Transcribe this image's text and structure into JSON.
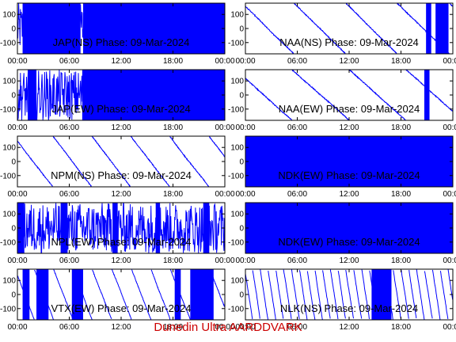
{
  "footer": "Dunedin Ultra AARDDVARK",
  "colors": {
    "trace": "#0000ff",
    "axis": "#000000",
    "footer": "#cc0000",
    "background": "#ffffff"
  },
  "chart_data": [
    {
      "type": "line",
      "title": "JAP(NS) Phase: 09-Mar-2024",
      "ylim": [
        -180,
        180
      ],
      "yticks": [
        -100,
        0,
        100
      ],
      "xlim": [
        0,
        24
      ],
      "xticks": [
        "00:00",
        "06:00",
        "12:00",
        "18:00",
        "00:00"
      ],
      "pattern": "noise",
      "blocks": [
        [
          0.6,
          7.3
        ],
        [
          7.6,
          24
        ]
      ]
    },
    {
      "type": "line",
      "title": "NAA(NS) Phase: 09-Mar-2024",
      "ylim": [
        -180,
        180
      ],
      "yticks": [
        -100,
        0,
        100
      ],
      "xlim": [
        0,
        24
      ],
      "xticks": [
        "00:00",
        "06:00",
        "12:00",
        "18:00",
        "00:00"
      ],
      "pattern": "wrapped",
      "rate": 60,
      "start": 160,
      "blocks": [
        [
          20.9,
          21.5
        ],
        [
          22.0,
          23.5
        ]
      ]
    },
    {
      "type": "line",
      "title": "JAP(EW) Phase: 09-Mar-2024",
      "ylim": [
        -180,
        180
      ],
      "yticks": [
        -100,
        0,
        100
      ],
      "xlim": [
        0,
        24
      ],
      "xticks": [
        "00:00",
        "06:00",
        "12:00",
        "18:00",
        "00:00"
      ],
      "pattern": "noise",
      "blocks": [
        [
          1.2,
          2.2
        ],
        [
          7.5,
          24
        ]
      ]
    },
    {
      "type": "line",
      "title": "NAA(EW) Phase: 09-Mar-2024",
      "ylim": [
        -180,
        180
      ],
      "yticks": [
        -100,
        0,
        100
      ],
      "xlim": [
        0,
        24
      ],
      "xticks": [
        "00:00",
        "06:00",
        "12:00",
        "18:00",
        "00:00"
      ],
      "pattern": "wrapped",
      "rate": 55,
      "start": 120,
      "blocks": [
        [
          20.7,
          21.3
        ]
      ]
    },
    {
      "type": "line",
      "title": "NPM(NS) Phase: 09-Mar-2024",
      "ylim": [
        -180,
        180
      ],
      "yticks": [
        -100,
        0,
        100
      ],
      "xlim": [
        0,
        24
      ],
      "xticks": [
        "00:00",
        "06:00",
        "12:00",
        "18:00",
        "00:00"
      ],
      "pattern": "wrapped",
      "rate": 80,
      "start": 150,
      "blocks": []
    },
    {
      "type": "line",
      "title": "NDK(EW) Phase: 09-Mar-2024",
      "ylim": [
        -180,
        180
      ],
      "yticks": [
        -100,
        0,
        100
      ],
      "xlim": [
        0,
        24
      ],
      "xticks": [
        "00:00",
        "06:00",
        "12:00",
        "18:00",
        "00:00"
      ],
      "pattern": "noise",
      "blocks": [
        [
          0,
          24
        ]
      ]
    },
    {
      "type": "line",
      "title": "NPL(EW) Phase: 09-Mar-2024",
      "ylim": [
        -180,
        180
      ],
      "yticks": [
        -100,
        0,
        100
      ],
      "xlim": [
        0,
        24
      ],
      "xticks": [
        "00:00",
        "06:00",
        "12:00",
        "18:00",
        "00:00"
      ],
      "pattern": "noise",
      "blocks": [
        [
          0.0,
          0.8
        ],
        [
          5.0,
          5.8
        ],
        [
          11.0,
          11.6
        ],
        [
          16.0,
          16.5
        ],
        [
          21.5,
          22.2
        ]
      ]
    },
    {
      "type": "line",
      "title": "NDK(EW) Phase: 09-Mar-2024",
      "ylim": [
        -180,
        180
      ],
      "yticks": [
        -100,
        0,
        100
      ],
      "xlim": [
        0,
        24
      ],
      "xticks": [
        "00:00",
        "06:00",
        "12:00",
        "18:00",
        "00:00"
      ],
      "pattern": "noise",
      "blocks": [
        [
          0,
          24
        ]
      ]
    },
    {
      "type": "line",
      "title": "VTX(EW) Phase: 09-Mar-2024",
      "ylim": [
        -180,
        180
      ],
      "yticks": [
        -100,
        0,
        100
      ],
      "xlim": [
        0,
        24
      ],
      "xticks": [
        "00:00",
        "06:00",
        "12:00",
        "18:00",
        "00:00"
      ],
      "pattern": "wrapped",
      "rate": 160,
      "start": 140,
      "blocks": [
        [
          0.6,
          1.4
        ],
        [
          2.2,
          3.6
        ],
        [
          6.3,
          7.6
        ],
        [
          18.2,
          18.9
        ],
        [
          20.0,
          22.7
        ]
      ]
    },
    {
      "type": "line",
      "title": "NLK(NS) Phase: 09-Mar-2024",
      "ylim": [
        -180,
        180
      ],
      "yticks": [
        -100,
        0,
        100
      ],
      "xlim": [
        0,
        24
      ],
      "xticks": [
        "00:00",
        "06:00",
        "12:00",
        "18:00",
        "00:00"
      ],
      "pattern": "wrapped",
      "rate": 400,
      "start": 160,
      "blocks": [
        [
          14.6,
          16.9
        ]
      ]
    }
  ]
}
